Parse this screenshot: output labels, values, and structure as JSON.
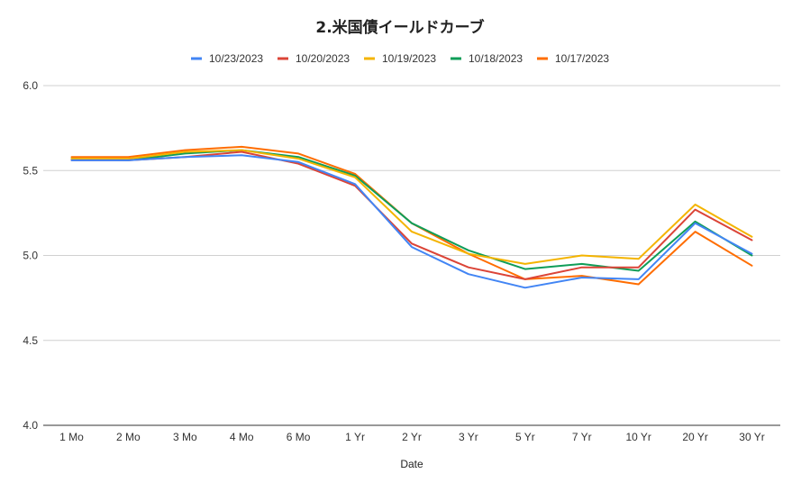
{
  "chart_data": {
    "type": "line",
    "title": "2.米国債イールドカーブ",
    "xlabel": "Date",
    "ylabel": "",
    "ylim": [
      4.0,
      6.0
    ],
    "yticks": [
      "4.0",
      "4.5",
      "5.0",
      "5.5",
      "6.0"
    ],
    "ytick_values": [
      4.0,
      4.5,
      5.0,
      5.5,
      6.0
    ],
    "grid": true,
    "legend_position": "top",
    "categories": [
      "1 Mo",
      "2 Mo",
      "3 Mo",
      "4 Mo",
      "6 Mo",
      "1 Yr",
      "2 Yr",
      "3 Yr",
      "5 Yr",
      "7 Yr",
      "10 Yr",
      "20 Yr",
      "30 Yr"
    ],
    "series": [
      {
        "name": "10/23/2023",
        "color": "#4285f4",
        "values": [
          5.56,
          5.56,
          5.58,
          5.59,
          5.55,
          5.42,
          5.05,
          4.89,
          4.81,
          4.87,
          4.86,
          5.19,
          5.01
        ]
      },
      {
        "name": "10/20/2023",
        "color": "#db4437",
        "values": [
          5.56,
          5.56,
          5.58,
          5.61,
          5.54,
          5.41,
          5.07,
          4.93,
          4.86,
          4.93,
          4.93,
          5.27,
          5.09
        ]
      },
      {
        "name": "10/19/2023",
        "color": "#f4b400",
        "values": [
          5.57,
          5.57,
          5.61,
          5.62,
          5.57,
          5.46,
          5.14,
          5.01,
          4.95,
          5.0,
          4.98,
          5.3,
          5.11
        ]
      },
      {
        "name": "10/18/2023",
        "color": "#0f9d58",
        "values": [
          5.57,
          5.56,
          5.6,
          5.62,
          5.58,
          5.47,
          5.19,
          5.03,
          4.92,
          4.95,
          4.91,
          5.2,
          5.0
        ]
      },
      {
        "name": "10/17/2023",
        "color": "#ff6d00",
        "values": [
          5.58,
          5.58,
          5.62,
          5.64,
          5.6,
          5.48,
          5.19,
          5.01,
          4.86,
          4.88,
          4.83,
          5.14,
          4.94
        ]
      }
    ]
  }
}
